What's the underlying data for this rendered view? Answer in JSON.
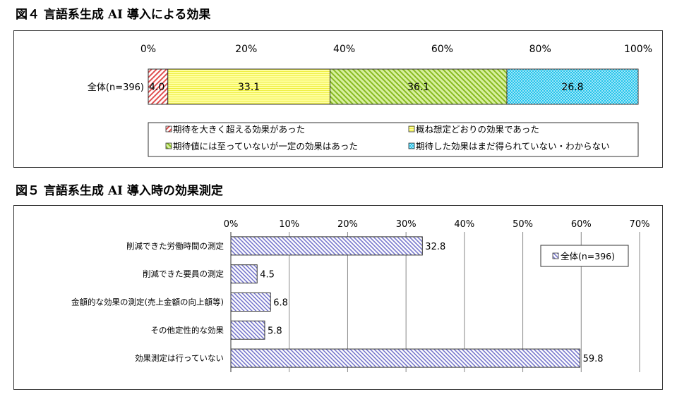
{
  "figure4": {
    "title": "図４ 言語系生成 AI 導入による効果",
    "chart_data": {
      "type": "bar",
      "orientation": "horizontal-stacked-100",
      "categories": [
        "全体(n=396)"
      ],
      "xlim": [
        0,
        100
      ],
      "x_ticks": [
        "0%",
        "20%",
        "40%",
        "60%",
        "80%",
        "100%"
      ],
      "series": [
        {
          "name": "期待を大きく超える効果があった",
          "values": [
            4.0
          ],
          "label": "4.0",
          "color": "#e05050",
          "pattern": "diag-red"
        },
        {
          "name": "概ね想定どおりの効果であった",
          "values": [
            33.1
          ],
          "label": "33.1",
          "color": "#ffff80",
          "pattern": "hlines-yellow"
        },
        {
          "name": "期待値には至っていないが一定の効果はあった",
          "values": [
            36.1
          ],
          "label": "36.1",
          "color": "#99cc33",
          "pattern": "diag-green"
        },
        {
          "name": "期待した効果はまだ得られていない・わからない",
          "values": [
            26.8
          ],
          "label": "26.8",
          "color": "#33ccee",
          "pattern": "dots-cyan"
        }
      ],
      "legend_position": "bottom"
    }
  },
  "figure5": {
    "title": "図５ 言語系生成 AI 導入時の効果測定",
    "chart_data": {
      "type": "bar",
      "orientation": "horizontal",
      "categories": [
        "削減できた労働時間の測定",
        "削減できた要員の測定",
        "金額的な効果の測定(売上金額の向上額等)",
        "その他定性的な効果",
        "効果測定は行っていない"
      ],
      "series": [
        {
          "name": "全体(n=396)",
          "values": [
            32.8,
            4.5,
            6.8,
            5.8,
            59.8
          ],
          "labels": [
            "32.8",
            "4.5",
            "6.8",
            "5.8",
            "59.8"
          ],
          "color": "#7777cc",
          "pattern": "diag-blue"
        }
      ],
      "xlim": [
        0,
        70
      ],
      "x_ticks": [
        "0%",
        "10%",
        "20%",
        "30%",
        "40%",
        "50%",
        "60%",
        "70%"
      ],
      "grid": "vertical",
      "legend_position": "top-right"
    }
  }
}
